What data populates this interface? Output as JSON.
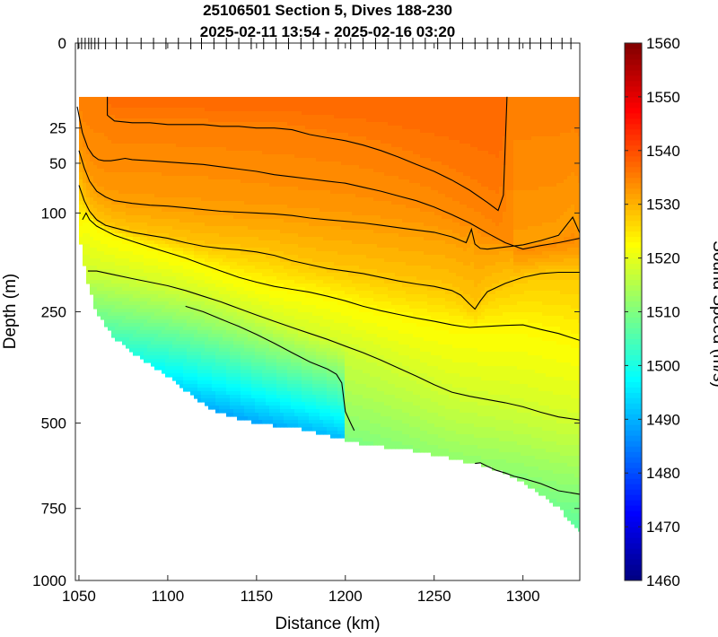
{
  "chart_data": {
    "type": "heatmap",
    "title_line1": "25106501 Section 5, Dives 188-230",
    "title_line2": "2025-02-11 13:54 - 2025-02-16 03:20",
    "xlabel": "Distance (km)",
    "ylabel": "Depth (m)",
    "colorbar_label": "Sound Speed (m/s)",
    "xlim": [
      1048,
      1332
    ],
    "x_ticks": [
      1050,
      1100,
      1150,
      1200,
      1250,
      1300
    ],
    "x_tick_labels": [
      "1050",
      "1100",
      "1150",
      "1200",
      "1250",
      "1300"
    ],
    "ylim": [
      0,
      1000
    ],
    "y_scale": "sqrt",
    "y_ticks": [
      0,
      25,
      50,
      100,
      250,
      500,
      750,
      1000
    ],
    "y_tick_labels": [
      "0",
      "25",
      "50",
      "100",
      "250",
      "500",
      "750",
      "1000"
    ],
    "clim": [
      1460,
      1560
    ],
    "colorbar_ticks": [
      1460,
      1470,
      1480,
      1490,
      1500,
      1510,
      1520,
      1530,
      1540,
      1550,
      1560
    ],
    "colorbar_tick_labels": [
      "1460",
      "1470",
      "1480",
      "1490",
      "1500",
      "1510",
      "1520",
      "1530",
      "1540",
      "1550",
      "1560"
    ],
    "colormap": "jet",
    "data_top_depth": 10,
    "dive_marks_km": [
      1049.5,
      1051.5,
      1053.5,
      1055.5,
      1057,
      1059,
      1061,
      1065,
      1071,
      1077,
      1085,
      1092,
      1099,
      1106,
      1113,
      1119,
      1126,
      1133,
      1140,
      1147,
      1154,
      1161,
      1168,
      1175,
      1182,
      1189,
      1196,
      1203,
      1210,
      1217,
      1224,
      1231,
      1238,
      1245,
      1252,
      1259,
      1266,
      1273,
      1280,
      1286,
      1292,
      1298,
      1304,
      1310,
      1316,
      1322,
      1327
    ],
    "bottom_depth_profile": {
      "x_km": [
        1051,
        1053,
        1055,
        1057,
        1059,
        1062,
        1066,
        1070,
        1076,
        1082,
        1088,
        1094,
        1100,
        1106,
        1113,
        1120,
        1128,
        1136,
        1144,
        1152,
        1160,
        1170,
        1180,
        1190,
        1200,
        1210,
        1220,
        1230,
        1240,
        1250,
        1260,
        1270,
        1280,
        1290,
        1300,
        1310,
        1320,
        1332
      ],
      "depth_m": [
        140,
        170,
        200,
        220,
        245,
        262,
        282,
        300,
        318,
        336,
        352,
        368,
        384,
        405,
        428,
        450,
        470,
        484,
        493,
        500,
        506,
        511,
        519,
        533,
        545,
        556,
        563,
        568,
        576,
        586,
        598,
        609,
        620,
        642,
        668,
        705,
        748,
        820
      ]
    },
    "contours": [
      {
        "level": 1535,
        "x_km": [
          1066,
          1066,
          1070,
          1080,
          1090,
          1100,
          1110,
          1120,
          1130,
          1140,
          1150,
          1160,
          1170,
          1180,
          1190,
          1200,
          1210,
          1220,
          1230,
          1240,
          1250,
          1260,
          1270,
          1280,
          1286,
          1289,
          1291
        ],
        "depth_m": [
          10,
          18,
          21,
          22,
          22,
          23,
          23,
          23,
          24,
          24,
          25,
          25,
          26,
          29,
          31,
          33,
          36,
          40,
          45,
          51,
          57,
          65,
          75,
          88,
          97,
          80,
          10
        ]
      },
      {
        "level": 1534,
        "x_km": [
          1049,
          1052,
          1055,
          1058,
          1061,
          1064,
          1068,
          1072,
          1076,
          1080,
          1090,
          1100,
          1110,
          1120,
          1130,
          1140,
          1150,
          1160,
          1170,
          1180,
          1190,
          1200,
          1210,
          1220,
          1230,
          1240,
          1250,
          1260,
          1270,
          1280,
          1290,
          1300,
          1310,
          1320,
          1332
        ],
        "depth_m": [
          14,
          28,
          38,
          44,
          47,
          48,
          48,
          47,
          46,
          47,
          48,
          49,
          50,
          51,
          53,
          55,
          57,
          60,
          62,
          64,
          66,
          68,
          72,
          76,
          81,
          86,
          93,
          102,
          112,
          125,
          138,
          147,
          142,
          138,
          132
        ]
      },
      {
        "level": 1532,
        "x_km": [
          1050,
          1053,
          1056,
          1060,
          1065,
          1070,
          1080,
          1090,
          1100,
          1110,
          1120,
          1130,
          1140,
          1150,
          1160,
          1170,
          1180,
          1190,
          1200,
          1210,
          1220,
          1230,
          1240,
          1250,
          1260,
          1268,
          1271,
          1273,
          1276,
          1280,
          1290,
          1300,
          1310,
          1320,
          1328,
          1332
        ],
        "depth_m": [
          40,
          54,
          66,
          76,
          82,
          86,
          89,
          91,
          92,
          94,
          96,
          98,
          99,
          100,
          101,
          103,
          106,
          108,
          110,
          112,
          115,
          118,
          121,
          124,
          130,
          138,
          120,
          140,
          146,
          147,
          144,
          141,
          135,
          128,
          105,
          125
        ]
      },
      {
        "level": 1528,
        "x_km": [
          1050,
          1053,
          1056,
          1060,
          1065,
          1070,
          1080,
          1090,
          1100,
          1110,
          1120,
          1130,
          1140,
          1150,
          1160,
          1170,
          1180,
          1190,
          1200,
          1210,
          1220,
          1230,
          1240,
          1250,
          1260,
          1265,
          1270,
          1273,
          1276,
          1280,
          1290,
          1300,
          1310,
          1320,
          1332
        ],
        "depth_m": [
          70,
          86,
          98,
          108,
          115,
          118,
          124,
          128,
          132,
          138,
          143,
          146,
          148,
          151,
          156,
          164,
          170,
          176,
          180,
          184,
          190,
          196,
          201,
          205,
          212,
          220,
          236,
          245,
          230,
          214,
          200,
          190,
          184,
          182,
          182
        ]
      },
      {
        "level": 1523,
        "x_km": [
          1052,
          1054,
          1056,
          1060,
          1065,
          1070,
          1080,
          1090,
          1100,
          1110,
          1120,
          1130,
          1140,
          1150,
          1160,
          1170,
          1180,
          1190,
          1200,
          1210,
          1220,
          1230,
          1240,
          1250,
          1260,
          1270,
          1280,
          1290,
          1300,
          1310,
          1320,
          1332
        ],
        "depth_m": [
          108,
          100,
          108,
          116,
          122,
          128,
          136,
          144,
          152,
          160,
          170,
          180,
          190,
          198,
          205,
          210,
          215,
          222,
          230,
          240,
          248,
          255,
          262,
          268,
          275,
          280,
          278,
          276,
          275,
          284,
          292,
          306
        ]
      },
      {
        "level": 1518,
        "x_km": [
          1055,
          1060,
          1070,
          1080,
          1090,
          1100,
          1110,
          1120,
          1130,
          1140,
          1150,
          1160,
          1170,
          1180,
          1190,
          1200,
          1210,
          1220,
          1230,
          1240,
          1250,
          1260,
          1270,
          1280,
          1290,
          1300,
          1310,
          1320,
          1332
        ],
        "depth_m": [
          180,
          180,
          186,
          192,
          198,
          204,
          212,
          222,
          232,
          244,
          256,
          268,
          280,
          292,
          304,
          318,
          332,
          348,
          366,
          384,
          404,
          422,
          432,
          440,
          448,
          458,
          472,
          484,
          492
        ]
      },
      {
        "level": 1512,
        "x_km": [
          1110,
          1120,
          1130,
          1140,
          1150,
          1160,
          1170,
          1180,
          1190,
          1195,
          1198,
          1200,
          1203,
          1205
        ],
        "depth_m": [
          240,
          250,
          264,
          278,
          294,
          312,
          332,
          352,
          368,
          380,
          400,
          470,
          500,
          520
        ]
      },
      {
        "level": 1512,
        "x_km": [
          1273,
          1276,
          1280,
          1285,
          1290,
          1295,
          1300,
          1310,
          1320,
          1332
        ],
        "depth_m": [
          612,
          610,
          620,
          632,
          640,
          650,
          656,
          672,
          694,
          705
        ]
      }
    ]
  }
}
